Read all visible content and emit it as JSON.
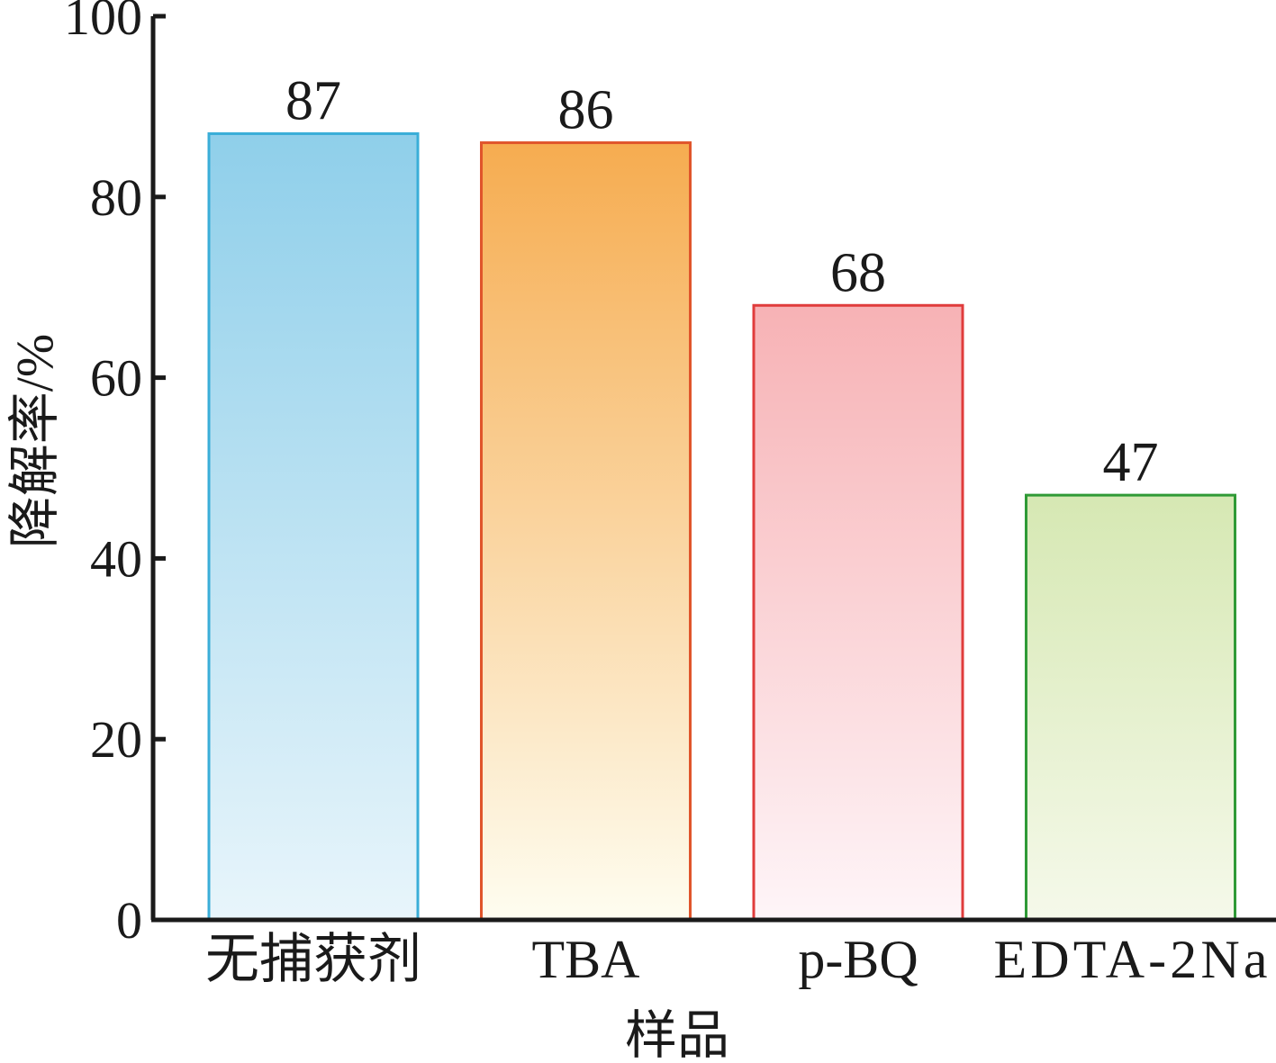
{
  "chart_data": {
    "type": "bar",
    "title": "",
    "xlabel": "样品",
    "ylabel": "降解率/%",
    "ylim": [
      0,
      100
    ],
    "yticks": [
      0,
      20,
      40,
      60,
      80,
      100
    ],
    "yticklabels": [
      "0",
      "20",
      "40",
      "60",
      "80",
      "100"
    ],
    "grid": false,
    "categories": [
      "无捕获剂",
      "TBA",
      "p-BQ",
      "EDTA-2Na"
    ],
    "values": [
      87,
      86,
      68,
      47
    ],
    "data_labels": [
      "87",
      "86",
      "68",
      "47"
    ],
    "colors": [
      {
        "border": "#3aaed8",
        "top": "#8fcfea",
        "bottom": "#e8f5fb"
      },
      {
        "border": "#e0552b",
        "top": "#f6ac50",
        "bottom": "#fefdf0"
      },
      {
        "border": "#e03c3c",
        "top": "#f7b2b5",
        "bottom": "#fef5f8"
      },
      {
        "border": "#2f9a36",
        "top": "#d6e8b3",
        "bottom": "#f5f9ea"
      }
    ]
  }
}
